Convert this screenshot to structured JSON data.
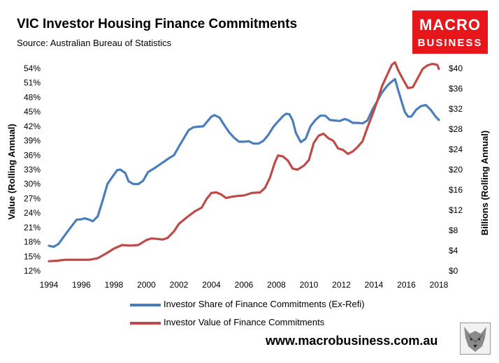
{
  "header": {
    "title": "VIC Investor Housing Finance Commitments",
    "source": "Source: Australian Bureau of Statistics"
  },
  "logo": {
    "line1": "MACRO",
    "line2": "BUSINESS",
    "color": "#e6161b"
  },
  "footer": {
    "url": "www.macrobusiness.com.au"
  },
  "chart_data": {
    "type": "line",
    "title": "VIC Investor Housing Finance Commitments",
    "left_axis": {
      "label": "Value (Rolling Annual)",
      "ticks": [
        "12%",
        "15%",
        "18%",
        "21%",
        "24%",
        "27%",
        "30%",
        "33%",
        "36%",
        "39%",
        "42%",
        "45%",
        "48%",
        "51%",
        "54%"
      ],
      "range": [
        12,
        54
      ]
    },
    "right_axis": {
      "label": "Billions (Rolling Annual)",
      "ticks": [
        "$0",
        "$4",
        "$8",
        "$12",
        "$16",
        "$20",
        "$24",
        "$28",
        "$32",
        "$36",
        "$40"
      ],
      "range": [
        0,
        40
      ]
    },
    "x_axis": {
      "ticks": [
        "1994",
        "1996",
        "1998",
        "2000",
        "2002",
        "2004",
        "2006",
        "2008",
        "2010",
        "2012",
        "2014",
        "2016",
        "2018"
      ],
      "range": [
        1994,
        2018
      ]
    },
    "grid": false,
    "legend_position": "bottom",
    "series": [
      {
        "name": "Investor Share of Finance Commitments (Ex-Refi)",
        "axis": "left",
        "color": "#4a7ebb",
        "points": [
          [
            1994.0,
            17.2
          ],
          [
            1994.3,
            17.0
          ],
          [
            1994.6,
            17.6
          ],
          [
            1995.0,
            19.5
          ],
          [
            1995.4,
            21.3
          ],
          [
            1995.7,
            22.6
          ],
          [
            1996.0,
            22.7
          ],
          [
            1996.2,
            22.9
          ],
          [
            1996.5,
            22.6
          ],
          [
            1996.7,
            22.3
          ],
          [
            1997.0,
            23.3
          ],
          [
            1997.3,
            26.5
          ],
          [
            1997.6,
            30.0
          ],
          [
            1997.9,
            31.5
          ],
          [
            1998.2,
            32.9
          ],
          [
            1998.4,
            33.0
          ],
          [
            1998.7,
            32.3
          ],
          [
            1998.9,
            30.6
          ],
          [
            1999.2,
            30.0
          ],
          [
            1999.5,
            30.0
          ],
          [
            1999.8,
            30.7
          ],
          [
            2000.1,
            32.5
          ],
          [
            2000.5,
            33.3
          ],
          [
            2000.8,
            34.0
          ],
          [
            2001.1,
            34.7
          ],
          [
            2001.4,
            35.4
          ],
          [
            2001.7,
            36.0
          ],
          [
            2002.0,
            37.8
          ],
          [
            2002.3,
            39.5
          ],
          [
            2002.6,
            41.2
          ],
          [
            2002.9,
            41.8
          ],
          [
            2003.2,
            41.9
          ],
          [
            2003.5,
            42.0
          ],
          [
            2003.8,
            43.2
          ],
          [
            2004.0,
            44.0
          ],
          [
            2004.2,
            44.3
          ],
          [
            2004.5,
            43.8
          ],
          [
            2004.8,
            42.2
          ],
          [
            2005.1,
            40.7
          ],
          [
            2005.4,
            39.6
          ],
          [
            2005.7,
            38.8
          ],
          [
            2006.0,
            38.8
          ],
          [
            2006.3,
            38.9
          ],
          [
            2006.6,
            38.4
          ],
          [
            2006.9,
            38.4
          ],
          [
            2007.2,
            39.0
          ],
          [
            2007.5,
            40.2
          ],
          [
            2007.8,
            41.8
          ],
          [
            2008.1,
            43.0
          ],
          [
            2008.4,
            44.1
          ],
          [
            2008.6,
            44.6
          ],
          [
            2008.8,
            44.5
          ],
          [
            2009.0,
            43.2
          ],
          [
            2009.2,
            40.6
          ],
          [
            2009.5,
            38.7
          ],
          [
            2009.8,
            39.4
          ],
          [
            2010.1,
            42.0
          ],
          [
            2010.4,
            43.3
          ],
          [
            2010.7,
            44.2
          ],
          [
            2011.0,
            44.2
          ],
          [
            2011.3,
            43.3
          ],
          [
            2011.6,
            43.2
          ],
          [
            2011.9,
            43.1
          ],
          [
            2012.2,
            43.5
          ],
          [
            2012.4,
            43.3
          ],
          [
            2012.7,
            42.7
          ],
          [
            2013.0,
            42.7
          ],
          [
            2013.3,
            42.6
          ],
          [
            2013.6,
            43.2
          ],
          [
            2013.9,
            45.4
          ],
          [
            2014.2,
            47.2
          ],
          [
            2014.5,
            49.0
          ],
          [
            2014.8,
            50.3
          ],
          [
            2015.0,
            51.0
          ],
          [
            2015.3,
            51.8
          ],
          [
            2015.5,
            49.4
          ],
          [
            2015.7,
            47.2
          ],
          [
            2015.9,
            45.0
          ],
          [
            2016.1,
            44.0
          ],
          [
            2016.3,
            44.0
          ],
          [
            2016.6,
            45.4
          ],
          [
            2016.9,
            46.2
          ],
          [
            2017.2,
            46.4
          ],
          [
            2017.5,
            45.4
          ],
          [
            2017.8,
            44.0
          ],
          [
            2018.0,
            43.3
          ]
        ]
      },
      {
        "name": "Investor Value of Finance Commitments",
        "axis": "right",
        "color": "#be4b48",
        "points": [
          [
            1994.0,
            1.9
          ],
          [
            1994.5,
            2.0
          ],
          [
            1995.0,
            2.2
          ],
          [
            1995.5,
            2.2
          ],
          [
            1996.0,
            2.2
          ],
          [
            1996.5,
            2.2
          ],
          [
            1997.0,
            2.5
          ],
          [
            1997.5,
            3.4
          ],
          [
            1998.0,
            4.4
          ],
          [
            1998.5,
            5.1
          ],
          [
            1999.0,
            5.0
          ],
          [
            1999.5,
            5.1
          ],
          [
            2000.0,
            6.1
          ],
          [
            2000.3,
            6.4
          ],
          [
            2000.7,
            6.3
          ],
          [
            2001.0,
            6.2
          ],
          [
            2001.3,
            6.5
          ],
          [
            2001.7,
            7.8
          ],
          [
            2002.0,
            9.3
          ],
          [
            2002.5,
            10.6
          ],
          [
            2003.0,
            11.8
          ],
          [
            2003.4,
            12.5
          ],
          [
            2003.7,
            14.2
          ],
          [
            2004.0,
            15.4
          ],
          [
            2004.3,
            15.5
          ],
          [
            2004.6,
            15.1
          ],
          [
            2004.9,
            14.4
          ],
          [
            2005.2,
            14.6
          ],
          [
            2005.6,
            14.8
          ],
          [
            2006.0,
            14.9
          ],
          [
            2006.5,
            15.4
          ],
          [
            2007.0,
            15.5
          ],
          [
            2007.3,
            16.4
          ],
          [
            2007.6,
            18.4
          ],
          [
            2007.9,
            21.4
          ],
          [
            2008.1,
            22.8
          ],
          [
            2008.4,
            22.6
          ],
          [
            2008.7,
            21.8
          ],
          [
            2009.0,
            20.2
          ],
          [
            2009.3,
            20.0
          ],
          [
            2009.7,
            20.8
          ],
          [
            2010.0,
            21.9
          ],
          [
            2010.3,
            25.3
          ],
          [
            2010.6,
            26.7
          ],
          [
            2010.9,
            27.1
          ],
          [
            2011.2,
            26.2
          ],
          [
            2011.5,
            25.7
          ],
          [
            2011.8,
            24.2
          ],
          [
            2012.1,
            23.9
          ],
          [
            2012.4,
            23.1
          ],
          [
            2012.7,
            23.6
          ],
          [
            2013.0,
            24.5
          ],
          [
            2013.3,
            25.6
          ],
          [
            2013.6,
            28.3
          ],
          [
            2013.9,
            30.8
          ],
          [
            2014.2,
            33.5
          ],
          [
            2014.5,
            36.5
          ],
          [
            2014.8,
            38.6
          ],
          [
            2015.1,
            40.7
          ],
          [
            2015.3,
            41.2
          ],
          [
            2015.5,
            39.6
          ],
          [
            2015.8,
            37.8
          ],
          [
            2016.1,
            36.1
          ],
          [
            2016.4,
            36.3
          ],
          [
            2016.7,
            38.1
          ],
          [
            2017.0,
            39.9
          ],
          [
            2017.3,
            40.6
          ],
          [
            2017.6,
            40.9
          ],
          [
            2017.9,
            40.7
          ],
          [
            2018.0,
            39.9
          ]
        ]
      }
    ]
  }
}
